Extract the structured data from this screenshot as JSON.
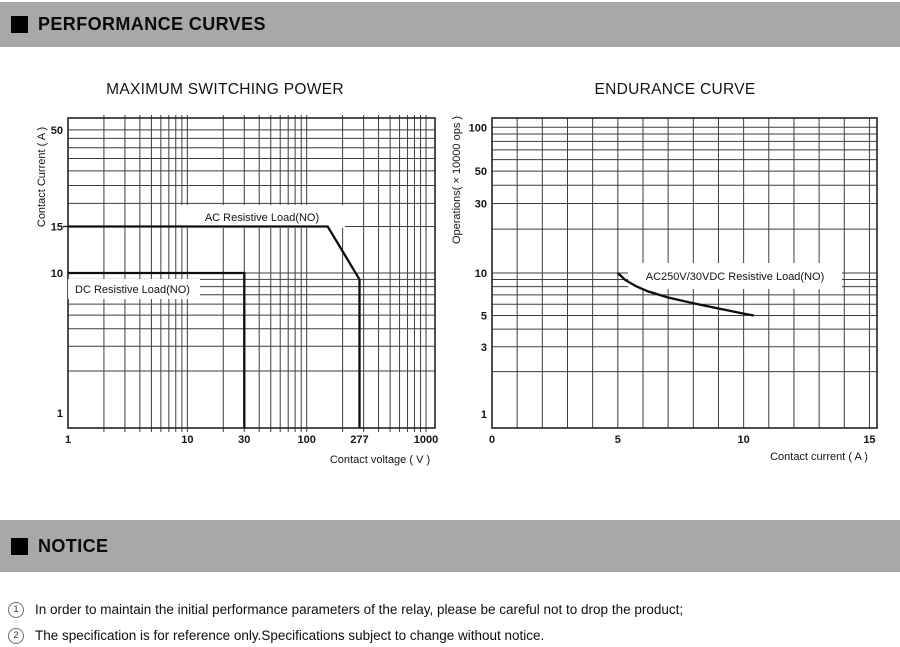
{
  "header": {
    "title": "PERFORMANCE CURVES",
    "bar_color": "#a8a8a8"
  },
  "chart_data": [
    {
      "type": "line",
      "title": "MAXIMUM SWITCHING POWER",
      "xlabel": "Contact voltage ( V )",
      "ylabel": "Contact Current ( A )",
      "x_scale": "log",
      "y_scale": "log",
      "xlim": [
        1,
        1000
      ],
      "ylim": [
        1,
        50
      ],
      "grid": true,
      "x_ticks": [
        {
          "v": 1,
          "label": "1"
        },
        {
          "v": 10,
          "label": "10"
        },
        {
          "v": 30,
          "label": "30"
        },
        {
          "v": 100,
          "label": "100"
        },
        {
          "v": 277,
          "label": "277"
        },
        {
          "v": 1000,
          "label": "1000"
        }
      ],
      "y_ticks": [
        {
          "v": 50,
          "label": "50"
        },
        {
          "v": 15,
          "label": "15"
        },
        {
          "v": 10,
          "label": "10"
        },
        {
          "v": 1,
          "label": "1"
        }
      ],
      "x_gridlines": [
        2,
        3,
        4,
        5,
        6,
        7,
        8,
        9,
        10,
        20,
        30,
        40,
        50,
        60,
        70,
        80,
        90,
        100,
        200,
        300,
        400,
        500,
        600,
        700,
        800,
        900,
        1000
      ],
      "y_gridlines": [
        2,
        3,
        4,
        5,
        6,
        7,
        8,
        9,
        10,
        15,
        20,
        25,
        30,
        35,
        40,
        45,
        50
      ],
      "series": [
        {
          "name": "AC Resistive Load(NO)",
          "points": [
            [
              1,
              15
            ],
            [
              150,
              15
            ],
            [
              277,
              9
            ],
            [
              277,
              1
            ]
          ]
        },
        {
          "name": "DC Resistive Load(NO)",
          "points": [
            [
              1,
              10
            ],
            [
              30,
              10
            ],
            [
              30,
              1
            ]
          ]
        }
      ]
    },
    {
      "type": "line",
      "title": "ENDURANCE CURVE",
      "xlabel": "Contact current ( A )",
      "ylabel": "Operations( × 10000 ops )",
      "x_scale": "linear",
      "y_scale": "log",
      "xlim": [
        0,
        15
      ],
      "ylim": [
        1,
        100
      ],
      "grid": true,
      "x_ticks": [
        {
          "v": 0,
          "label": "0"
        },
        {
          "v": 5,
          "label": "5"
        },
        {
          "v": 10,
          "label": "10"
        },
        {
          "v": 15,
          "label": "15"
        }
      ],
      "y_ticks": [
        {
          "v": 100,
          "label": "100"
        },
        {
          "v": 50,
          "label": "50"
        },
        {
          "v": 30,
          "label": "30"
        },
        {
          "v": 10,
          "label": "10"
        },
        {
          "v": 5,
          "label": "5"
        },
        {
          "v": 3,
          "label": "3"
        },
        {
          "v": 1,
          "label": "1"
        }
      ],
      "x_gridlines": [
        1,
        2,
        3,
        4,
        5,
        6,
        7,
        8,
        9,
        10,
        11,
        12,
        13,
        14,
        15
      ],
      "y_gridlines": [
        2,
        3,
        4,
        5,
        6,
        7,
        8,
        9,
        10,
        20,
        30,
        40,
        50,
        60,
        70,
        80,
        90,
        100
      ],
      "series": [
        {
          "name": "AC250V/30VDC Resistive Load(NO)",
          "points": [
            [
              5,
              10
            ],
            [
              5.3,
              8.9
            ],
            [
              5.7,
              8.1
            ],
            [
              6.2,
              7.4
            ],
            [
              7,
              6.7
            ],
            [
              8,
              6.1
            ],
            [
              9,
              5.6
            ],
            [
              10,
              5.15
            ],
            [
              10.4,
              5
            ]
          ]
        }
      ]
    }
  ],
  "notice": {
    "title": "NOTICE",
    "items": [
      {
        "num": "1",
        "text": "In order to maintain the initial performance parameters of the relay, please be careful not to drop the product;"
      },
      {
        "num": "2",
        "text": "The specification is for reference only.Specifications subject to change without notice."
      }
    ]
  }
}
